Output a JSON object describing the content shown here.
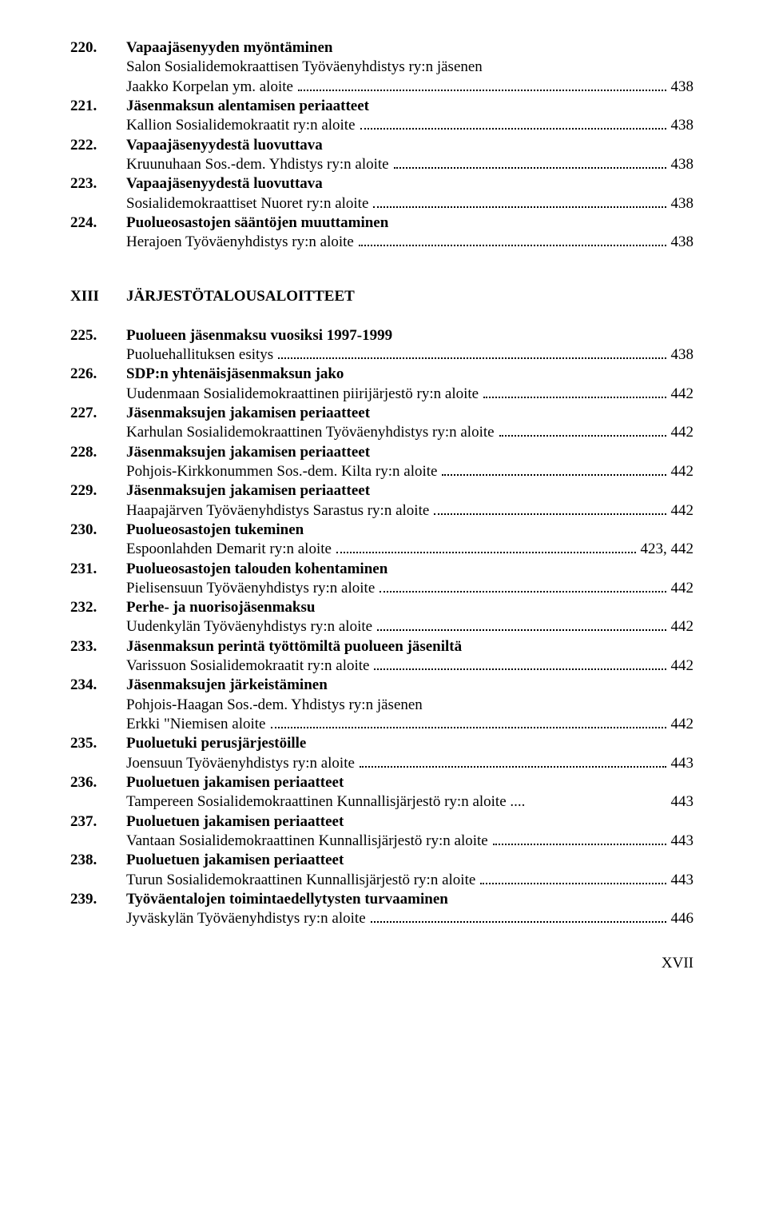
{
  "font": {
    "family": "Times New Roman",
    "base_size_pt": 14
  },
  "colors": {
    "text": "#000000",
    "background": "#ffffff",
    "dot": "#000000"
  },
  "section": {
    "roman": "XIII",
    "title": "JÄRJESTÖTALOUSALOITTEET"
  },
  "footer": "XVII",
  "group_a": [
    {
      "num": "220.",
      "title": "Vapaajäsenyyden myöntäminen",
      "lines": [
        {
          "text": "Salon Sosialidemokraattisen Työväenyhdistys ry:n jäsenen",
          "page": null
        },
        {
          "text": "Jaakko Korpelan ym. aloite",
          "page": "438"
        }
      ]
    },
    {
      "num": "221.",
      "title": "Jäsenmaksun alentamisen periaatteet",
      "lines": [
        {
          "text": "Kallion Sosialidemokraatit ry:n aloite",
          "page": "438"
        }
      ]
    },
    {
      "num": "222.",
      "title": "Vapaajäsenyydestä luovuttava",
      "lines": [
        {
          "text": "Kruunuhaan Sos.-dem. Yhdistys ry:n aloite",
          "page": "438"
        }
      ]
    },
    {
      "num": "223.",
      "title": "Vapaajäsenyydestä luovuttava",
      "lines": [
        {
          "text": "Sosialidemokraattiset Nuoret ry:n aloite",
          "page": "438"
        }
      ]
    },
    {
      "num": "224.",
      "title": "Puolueosastojen sääntöjen muuttaminen",
      "lines": [
        {
          "text": "Herajoen Työväenyhdistys ry:n aloite",
          "page": "438"
        }
      ]
    }
  ],
  "group_b": [
    {
      "num": "225.",
      "title": "Puolueen jäsenmaksu vuosiksi 1997-1999",
      "lines": [
        {
          "text": "Puoluehallituksen esitys",
          "page": "438"
        }
      ]
    },
    {
      "num": "226.",
      "title": "SDP:n yhtenäisjäsenmaksun jako",
      "lines": [
        {
          "text": "Uudenmaan Sosialidemokraattinen piirijärjestö ry:n aloite",
          "page": "442"
        }
      ]
    },
    {
      "num": "227.",
      "title": "Jäsenmaksujen jakamisen periaatteet",
      "lines": [
        {
          "text": "Karhulan Sosialidemokraattinen Työväenyhdistys ry:n aloite",
          "page": "442"
        }
      ]
    },
    {
      "num": "228.",
      "title": "Jäsenmaksujen jakamisen periaatteet",
      "lines": [
        {
          "text": "Pohjois-Kirkkonummen Sos.-dem. Kilta ry:n aloite",
          "page": "442"
        }
      ]
    },
    {
      "num": "229.",
      "title": "Jäsenmaksujen jakamisen periaatteet",
      "lines": [
        {
          "text": "Haapajärven Työväenyhdistys Sarastus ry:n aloite",
          "page": "442"
        }
      ]
    },
    {
      "num": "230.",
      "title": "Puolueosastojen tukeminen",
      "lines": [
        {
          "text": "Espoonlahden Demarit ry:n aloite",
          "page": "423, 442"
        }
      ]
    },
    {
      "num": "231.",
      "title": "Puolueosastojen talouden kohentaminen",
      "lines": [
        {
          "text": "Pielisensuun Työväenyhdistys ry:n aloite",
          "page": "442"
        }
      ]
    },
    {
      "num": "232.",
      "title": "Perhe- ja nuorisojäsenmaksu",
      "lines": [
        {
          "text": "Uudenkylän Työväenyhdistys ry:n aloite",
          "page": "442"
        }
      ]
    },
    {
      "num": "233.",
      "title": "Jäsenmaksun perintä työttömiltä puolueen jäseniltä",
      "lines": [
        {
          "text": "Varissuon Sosialidemokraatit ry:n aloite",
          "page": "442"
        }
      ]
    },
    {
      "num": "234.",
      "title": "Jäsenmaksujen järkeistäminen",
      "lines": [
        {
          "text": "Pohjois-Haagan Sos.-dem. Yhdistys ry:n jäsenen",
          "page": null
        },
        {
          "text": "Erkki \"Niemisen aloite",
          "page": "442"
        }
      ]
    },
    {
      "num": "235.",
      "title": "Puoluetuki perusjärjestöille",
      "lines": [
        {
          "text": "Joensuun Työväenyhdistys ry:n aloite",
          "page": "443"
        }
      ]
    },
    {
      "num": "236.",
      "title": "Puoluetuen jakamisen periaatteet",
      "lines": [
        {
          "text": "Tampereen Sosialidemokraattinen Kunnallisjärjestö ry:n aloite ....",
          "page": "443",
          "no_dots": true
        }
      ]
    },
    {
      "num": "237.",
      "title": "Puoluetuen jakamisen periaatteet",
      "lines": [
        {
          "text": "Vantaan Sosialidemokraattinen Kunnallisjärjestö ry:n aloite",
          "page": "443"
        }
      ]
    },
    {
      "num": "238.",
      "title": "Puoluetuen jakamisen periaatteet",
      "lines": [
        {
          "text": "Turun Sosialidemokraattinen Kunnallisjärjestö ry:n aloite",
          "page": "443"
        }
      ]
    },
    {
      "num": "239.",
      "title": "Työväentalojen toimintaedellytysten turvaaminen",
      "lines": [
        {
          "text": "Jyväskylän Työväenyhdistys ry:n aloite",
          "page": "446"
        }
      ]
    }
  ]
}
